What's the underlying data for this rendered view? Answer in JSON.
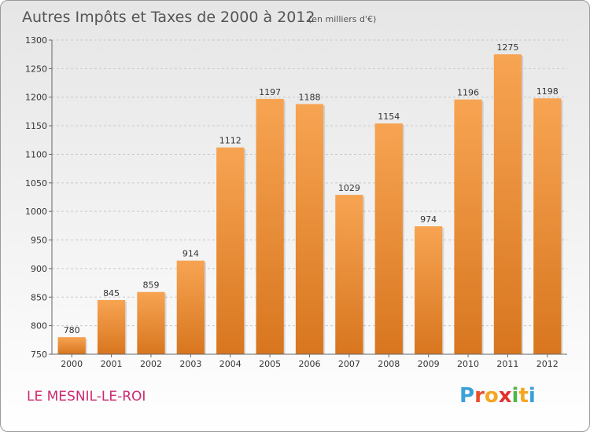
{
  "chart_data": {
    "type": "bar",
    "title": "Autres Impôts et Taxes de 2000 à 2012",
    "subtitle": "(en milliers d'€)",
    "categories": [
      "2000",
      "2001",
      "2002",
      "2003",
      "2004",
      "2005",
      "2006",
      "2007",
      "2008",
      "2009",
      "2010",
      "2011",
      "2012"
    ],
    "values": [
      780,
      845,
      859,
      914,
      1112,
      1197,
      1188,
      1029,
      1154,
      974,
      1196,
      1275,
      1198
    ],
    "ylim": [
      750,
      1300
    ],
    "yticks": [
      750,
      800,
      850,
      900,
      950,
      1000,
      1050,
      1100,
      1150,
      1200,
      1250,
      1300
    ],
    "grid": true,
    "bar_color": "#f0923a"
  },
  "footer": {
    "commune": "LE MESNIL-LE-ROI",
    "logo_text": "Proxiti"
  }
}
